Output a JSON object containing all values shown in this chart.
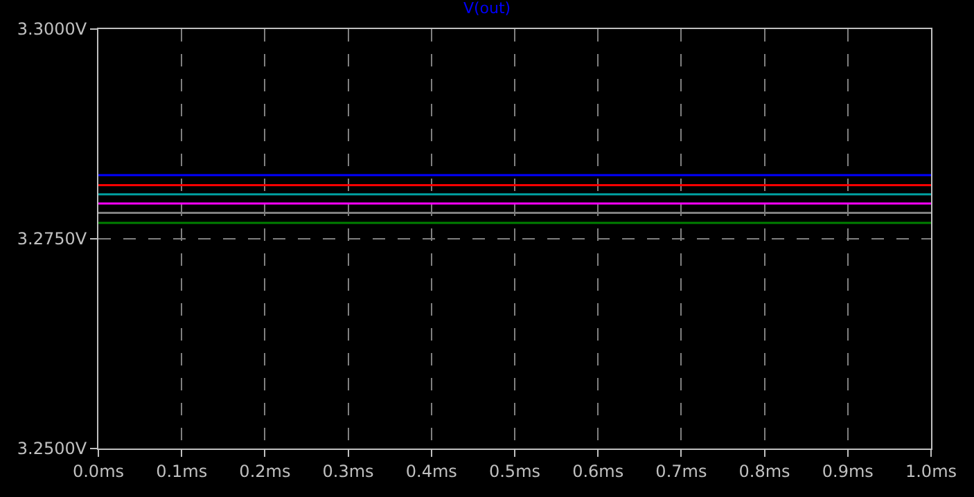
{
  "chart_data": {
    "type": "line",
    "title": "V(out)",
    "x": [
      0,
      1
    ],
    "series": [
      {
        "color": "#0000ff",
        "values": [
          3.2826,
          3.2826
        ]
      },
      {
        "color": "#ff0000",
        "values": [
          3.2814,
          3.2814
        ]
      },
      {
        "color": "#00a0a0",
        "values": [
          3.2803,
          3.2803
        ]
      },
      {
        "color": "#ff00ff",
        "values": [
          3.2792,
          3.2792
        ]
      },
      {
        "color": "#808080",
        "values": [
          3.2781,
          3.2781
        ]
      },
      {
        "color": "#008000",
        "values": [
          3.2769,
          3.2769
        ]
      }
    ],
    "xlim": [
      0,
      1
    ],
    "xticks": [
      {
        "value": 0,
        "label": "0.0ms"
      },
      {
        "value": 0.1,
        "label": "0.1ms"
      },
      {
        "value": 0.2,
        "label": "0.2ms"
      },
      {
        "value": 0.3,
        "label": "0.3ms"
      },
      {
        "value": 0.4,
        "label": "0.4ms"
      },
      {
        "value": 0.5,
        "label": "0.5ms"
      },
      {
        "value": 0.6,
        "label": "0.6ms"
      },
      {
        "value": 0.7,
        "label": "0.7ms"
      },
      {
        "value": 0.8,
        "label": "0.8ms"
      },
      {
        "value": 0.9,
        "label": "0.9ms"
      },
      {
        "value": 1,
        "label": "1.0ms"
      }
    ],
    "ylim": [
      3.25,
      3.3
    ],
    "yticks": [
      {
        "value": 3.25,
        "label": "3.2500V"
      },
      {
        "value": 3.275,
        "label": "3.2750V"
      },
      {
        "value": 3.3,
        "label": "3.3000V"
      }
    ],
    "grid": true,
    "marker": "none",
    "line_style": "solid"
  }
}
